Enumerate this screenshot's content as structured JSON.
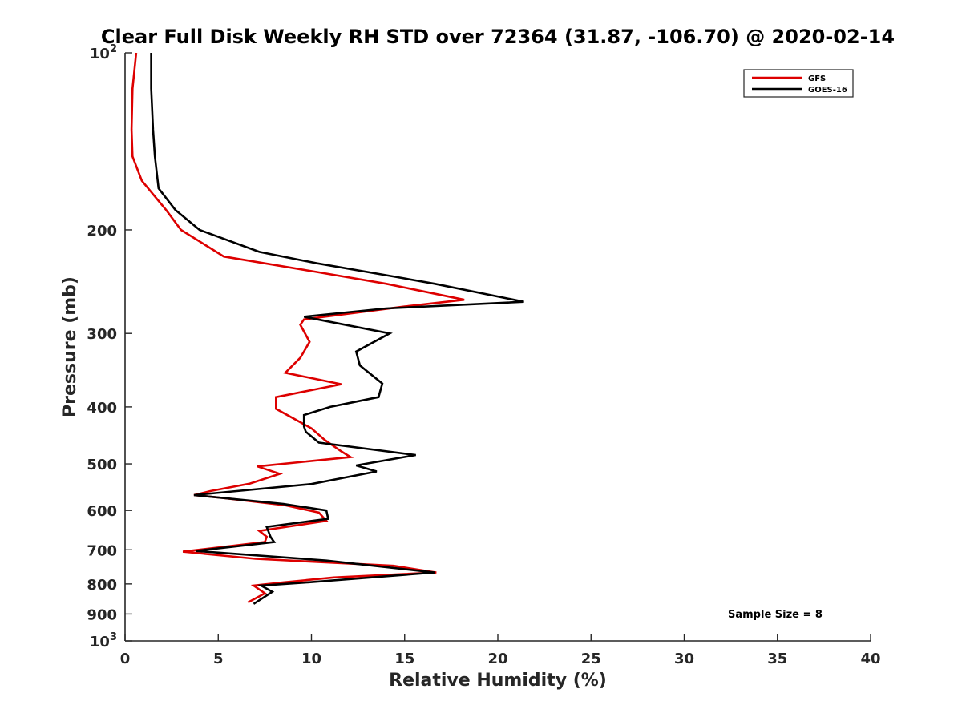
{
  "chart_data": {
    "type": "line",
    "title": "Clear Full Disk Weekly RH STD over 72364 (31.87, -106.70) @ 2020-02-14",
    "xlabel": "Relative Humidity (%)",
    "ylabel": "Pressure (mb)",
    "xlim": [
      0,
      40
    ],
    "ylim": [
      100,
      1000
    ],
    "y_scale": "log",
    "y_reversed": true,
    "x_ticks": [
      "0",
      "5",
      "10",
      "15",
      "20",
      "25",
      "30",
      "35",
      "40"
    ],
    "x_tick_values": [
      0,
      5,
      10,
      15,
      20,
      25,
      30,
      35,
      40
    ],
    "y_ticks": [
      {
        "value": 100,
        "base": "10",
        "exp": "2"
      },
      {
        "value": 200,
        "label": "200"
      },
      {
        "value": 300,
        "label": "300"
      },
      {
        "value": 400,
        "label": "400"
      },
      {
        "value": 500,
        "label": "500"
      },
      {
        "value": 600,
        "label": "600"
      },
      {
        "value": 700,
        "label": "700"
      },
      {
        "value": 800,
        "label": "800"
      },
      {
        "value": 900,
        "label": "900"
      },
      {
        "value": 1000,
        "base": "10",
        "exp": "3"
      }
    ],
    "grid": false,
    "legend_position": "top-right",
    "series": [
      {
        "name": "GFS",
        "color": "#dd0000",
        "points": [
          [
            0.6,
            100
          ],
          [
            0.4,
            115
          ],
          [
            0.35,
            135
          ],
          [
            0.4,
            150
          ],
          [
            0.9,
            165
          ],
          [
            2.2,
            185
          ],
          [
            3.0,
            200
          ],
          [
            5.3,
            222
          ],
          [
            10.0,
            235
          ],
          [
            14.0,
            247
          ],
          [
            18.2,
            263
          ],
          [
            15.0,
            270
          ],
          [
            9.6,
            284
          ],
          [
            9.4,
            290
          ],
          [
            9.9,
            310
          ],
          [
            9.4,
            330
          ],
          [
            8.6,
            350
          ],
          [
            11.6,
            366
          ],
          [
            8.1,
            385
          ],
          [
            8.1,
            403
          ],
          [
            10.0,
            435
          ],
          [
            10.7,
            455
          ],
          [
            11.6,
            476
          ],
          [
            12.1,
            487
          ],
          [
            7.1,
            505
          ],
          [
            8.3,
            520
          ],
          [
            6.7,
            540
          ],
          [
            4.6,
            556
          ],
          [
            3.7,
            565
          ],
          [
            5.2,
            571
          ],
          [
            8.6,
            588
          ],
          [
            10.4,
            605
          ],
          [
            10.8,
            625
          ],
          [
            7.2,
            650
          ],
          [
            7.6,
            665
          ],
          [
            7.5,
            679
          ],
          [
            3.1,
            705
          ],
          [
            7.0,
            725
          ],
          [
            14.4,
            745
          ],
          [
            16.7,
            765
          ],
          [
            11.2,
            780
          ],
          [
            8.5,
            795
          ],
          [
            6.9,
            805
          ],
          [
            7.5,
            830
          ],
          [
            6.6,
            860
          ]
        ]
      },
      {
        "name": "GOES-16",
        "color": "#000000",
        "points": [
          [
            1.4,
            100
          ],
          [
            1.4,
            115
          ],
          [
            1.5,
            135
          ],
          [
            1.6,
            150
          ],
          [
            1.8,
            170
          ],
          [
            2.7,
            185
          ],
          [
            4.0,
            200
          ],
          [
            7.2,
            218
          ],
          [
            10.3,
            228
          ],
          [
            14.4,
            240
          ],
          [
            16.6,
            247
          ],
          [
            21.4,
            265
          ],
          [
            14.0,
            272
          ],
          [
            9.6,
            281
          ],
          [
            14.2,
            300
          ],
          [
            12.4,
            322
          ],
          [
            12.6,
            340
          ],
          [
            13.8,
            365
          ],
          [
            13.6,
            385
          ],
          [
            11.0,
            400
          ],
          [
            9.6,
            413
          ],
          [
            9.6,
            432
          ],
          [
            9.7,
            441
          ],
          [
            10.4,
            460
          ],
          [
            15.6,
            483
          ],
          [
            12.4,
            503
          ],
          [
            13.5,
            515
          ],
          [
            10.0,
            541
          ],
          [
            3.7,
            565
          ],
          [
            8.5,
            585
          ],
          [
            10.8,
            600
          ],
          [
            10.9,
            620
          ],
          [
            7.6,
            640
          ],
          [
            7.8,
            665
          ],
          [
            8.0,
            679
          ],
          [
            3.8,
            703
          ],
          [
            10.8,
            730
          ],
          [
            16.6,
            765
          ],
          [
            9.8,
            795
          ],
          [
            7.3,
            805
          ],
          [
            7.9,
            825
          ],
          [
            6.9,
            865
          ]
        ]
      }
    ],
    "annotations": [
      {
        "text": "Sample Size = 8",
        "x": 33.5,
        "y": 900
      }
    ]
  }
}
